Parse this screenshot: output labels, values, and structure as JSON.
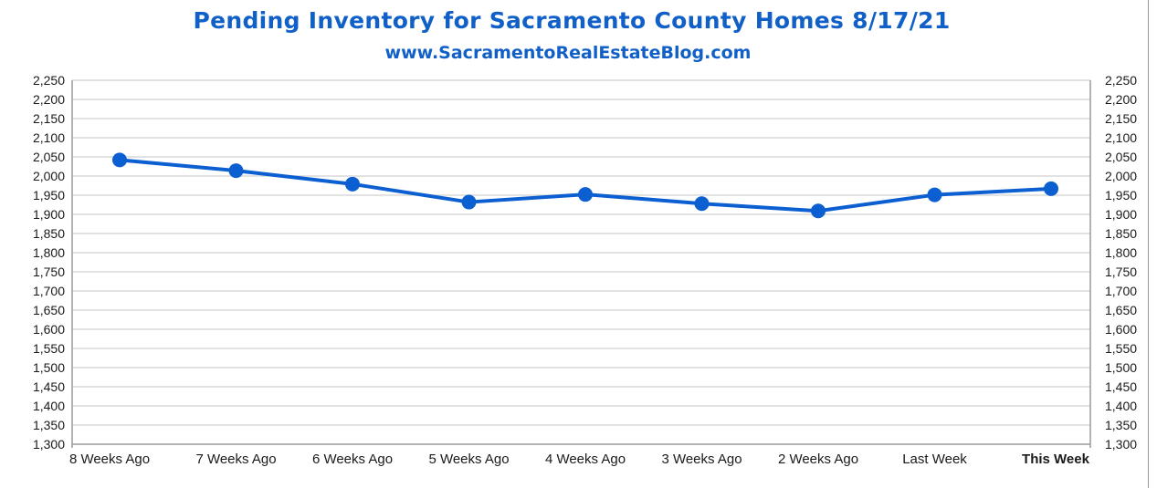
{
  "chart_data": {
    "type": "line",
    "title": "Pending Inventory for Sacramento County Homes 8/17/21",
    "subtitle": "www.SacramentoRealEstateBlog.com",
    "categories": [
      "8 Weeks Ago",
      "7 Weeks Ago",
      "6 Weeks Ago",
      "5 Weeks Ago",
      "4 Weeks Ago",
      "3 Weeks Ago",
      "2 Weeks Ago",
      "Last Week",
      "This Week"
    ],
    "highlight_category": "This Week",
    "series": [
      {
        "name": "Pending Inventory",
        "values": [
          2042,
          2014,
          1979,
          1932,
          1952,
          1928,
          1909,
          1951,
          1967
        ]
      }
    ],
    "ylim": [
      1300,
      2250
    ],
    "yticks": [
      1300,
      1350,
      1400,
      1450,
      1500,
      1550,
      1600,
      1650,
      1700,
      1750,
      1800,
      1850,
      1900,
      1950,
      2000,
      2050,
      2100,
      2150,
      2200,
      2250
    ],
    "ytick_labels": [
      "1,300",
      "1,350",
      "1,400",
      "1,450",
      "1,500",
      "1,550",
      "1,600",
      "1,650",
      "1,700",
      "1,750",
      "1,800",
      "1,850",
      "1,900",
      "1,950",
      "2,000",
      "2,050",
      "2,100",
      "2,150",
      "2,200",
      "2,250"
    ],
    "grid": true,
    "xlabel": "",
    "ylabel": "",
    "colors": {
      "title": "#1060c8",
      "line": "#0b5fd1",
      "grid": "#d9d9d9",
      "axis": "#9a9a9a",
      "highlight_label": "#1060c8"
    }
  }
}
